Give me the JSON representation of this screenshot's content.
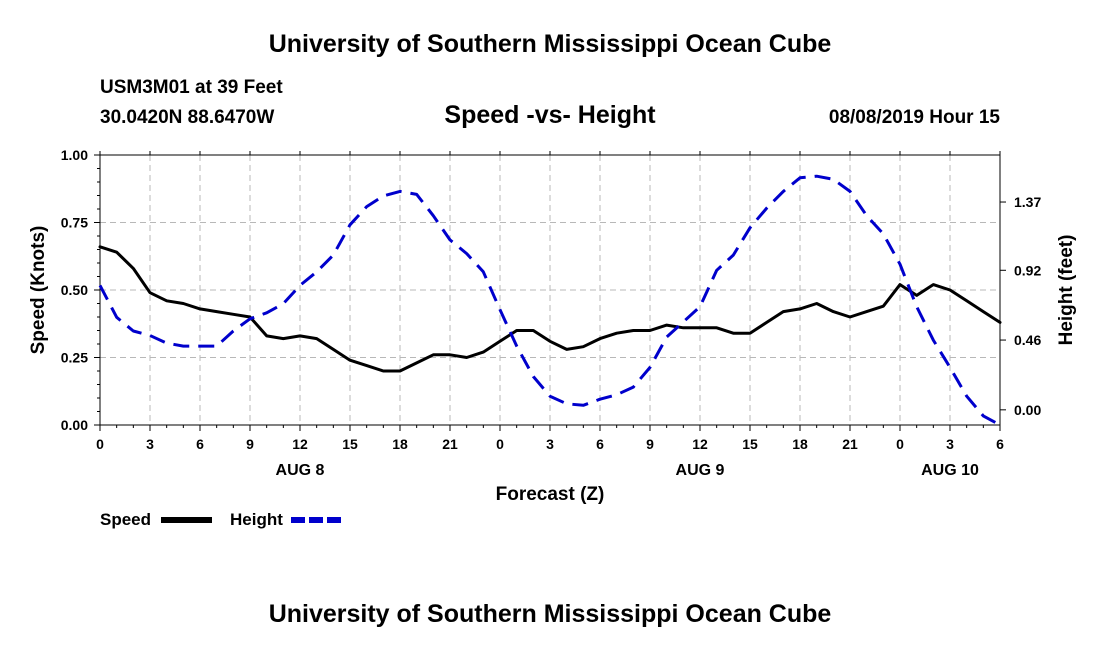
{
  "header": {
    "title": "University of Southern Mississippi Ocean Cube",
    "station": "USM3M01 at 39 Feet",
    "coords": "30.0420N 88.6470W",
    "chart_title": "Speed -vs- Height",
    "datetime": "08/08/2019 Hour 15"
  },
  "footer": {
    "title": "University of Southern Mississippi Ocean Cube"
  },
  "chart_data": {
    "type": "line",
    "title": "Speed -vs- Height",
    "xlabel": "Forecast (Z)",
    "ylabel_left": "Speed (Knots)",
    "ylabel_right": "Height (feet)",
    "xlim": [
      0,
      54
    ],
    "ylim_left": [
      0,
      1
    ],
    "ylim_right": [
      -0.1,
      1.68
    ],
    "grid": true,
    "x_ticks": [
      0,
      3,
      6,
      9,
      12,
      15,
      18,
      21,
      24,
      27,
      30,
      33,
      36,
      39,
      42,
      45,
      48,
      51,
      54
    ],
    "x_tick_labels": [
      "0",
      "3",
      "6",
      "9",
      "12",
      "15",
      "18",
      "21",
      "0",
      "3",
      "6",
      "9",
      "12",
      "15",
      "18",
      "21",
      "0",
      "3",
      "6"
    ],
    "date_labels": [
      {
        "x": 12,
        "label": "AUG 8"
      },
      {
        "x": 36,
        "label": "AUG 9"
      },
      {
        "x": 51,
        "label": "AUG 10"
      }
    ],
    "left_ticks": [
      0,
      0.25,
      0.5,
      0.75,
      1.0
    ],
    "left_tick_labels": [
      "0.00",
      "0.25",
      "0.50",
      "0.75",
      "1.00"
    ],
    "right_ticks": [
      0.0,
      0.46,
      0.92,
      1.37
    ],
    "right_tick_labels": [
      "0.00",
      "0.46",
      "0.92",
      "1.37"
    ],
    "legend": [
      {
        "name": "Speed",
        "color": "#000000",
        "dash": false
      },
      {
        "name": "Height",
        "color": "#0000cc",
        "dash": true
      }
    ],
    "series": [
      {
        "name": "Speed",
        "axis": "left",
        "color": "#000000",
        "x": [
          0,
          1,
          2,
          3,
          4,
          5,
          6,
          7,
          8,
          9,
          10,
          11,
          12,
          13,
          14,
          15,
          16,
          17,
          18,
          19,
          20,
          21,
          22,
          23,
          24,
          25,
          26,
          27,
          28,
          29,
          30,
          31,
          32,
          33,
          34,
          35,
          36,
          37,
          38,
          39,
          40,
          41,
          42,
          43,
          44,
          45,
          46,
          47,
          48,
          49,
          50,
          51,
          52,
          53,
          54
        ],
        "values": [
          0.66,
          0.64,
          0.58,
          0.49,
          0.46,
          0.45,
          0.43,
          0.42,
          0.41,
          0.4,
          0.33,
          0.32,
          0.33,
          0.32,
          0.28,
          0.24,
          0.22,
          0.2,
          0.2,
          0.23,
          0.26,
          0.26,
          0.25,
          0.27,
          0.31,
          0.35,
          0.35,
          0.31,
          0.28,
          0.29,
          0.32,
          0.34,
          0.35,
          0.35,
          0.37,
          0.36,
          0.36,
          0.36,
          0.34,
          0.34,
          0.38,
          0.42,
          0.43,
          0.45,
          0.42,
          0.4,
          0.42,
          0.44,
          0.52,
          0.48,
          0.52,
          0.5,
          0.46,
          0.42,
          0.38
        ]
      },
      {
        "name": "Height",
        "axis": "right",
        "color": "#0000cc",
        "x": [
          0,
          1,
          2,
          3,
          4,
          5,
          6,
          7,
          8,
          9,
          10,
          11,
          12,
          13,
          14,
          15,
          16,
          17,
          18,
          19,
          20,
          21,
          22,
          23,
          24,
          25,
          26,
          27,
          28,
          29,
          30,
          31,
          32,
          33,
          34,
          35,
          36,
          37,
          38,
          39,
          40,
          41,
          42,
          43,
          44,
          45,
          46,
          47,
          48,
          49,
          50,
          51,
          52,
          53,
          54
        ],
        "values": [
          0.82,
          0.61,
          0.52,
          0.49,
          0.44,
          0.42,
          0.42,
          0.42,
          0.52,
          0.6,
          0.64,
          0.7,
          0.82,
          0.91,
          1.02,
          1.22,
          1.34,
          1.41,
          1.44,
          1.42,
          1.28,
          1.12,
          1.03,
          0.91,
          0.66,
          0.42,
          0.22,
          0.09,
          0.04,
          0.03,
          0.07,
          0.1,
          0.15,
          0.28,
          0.48,
          0.58,
          0.68,
          0.92,
          1.02,
          1.2,
          1.33,
          1.44,
          1.53,
          1.54,
          1.52,
          1.44,
          1.28,
          1.16,
          0.96,
          0.68,
          0.46,
          0.28,
          0.09,
          -0.04,
          -0.1
        ]
      }
    ]
  }
}
